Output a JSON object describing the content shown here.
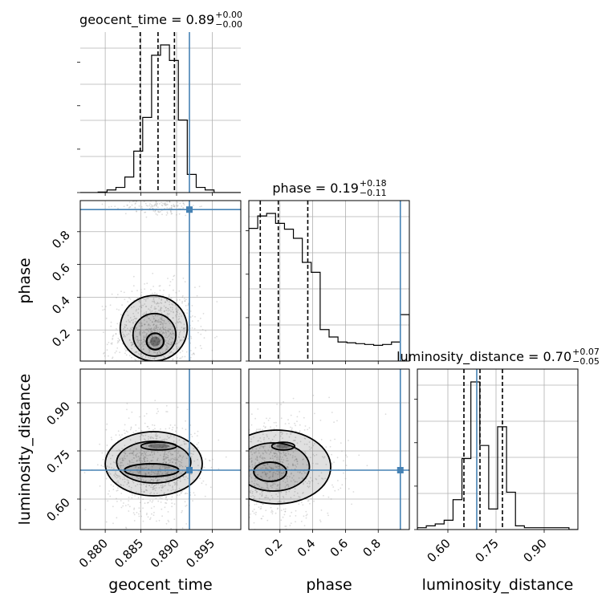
{
  "chart_data": {
    "type": "corner",
    "parameters": [
      {
        "name": "geocent_time",
        "axis_label": "geocent_time",
        "title_main": "geocent_time = 0.89",
        "title_up": "+0.00",
        "title_down": "−0.00",
        "range": [
          0.8765,
          0.899
        ],
        "ticks": [
          0.88,
          0.885,
          0.89,
          0.895
        ],
        "tick_labels": [
          "0.880",
          "0.885",
          "0.890",
          "0.895"
        ],
        "quantiles": [
          0.8849,
          0.8874,
          0.8897
        ],
        "truth": 0.8918,
        "hist": [
          0,
          0,
          0.2,
          1,
          2,
          6,
          16,
          29,
          53,
          57,
          51,
          28,
          7,
          2,
          1,
          0,
          0,
          0
        ]
      },
      {
        "name": "phase",
        "axis_label": "phase",
        "title_main": "phase = 0.19",
        "title_up": "+0.18",
        "title_down": "−0.11",
        "range": [
          0.01,
          0.99
        ],
        "ticks": [
          0.2,
          0.4,
          0.6,
          0.8
        ],
        "tick_labels": [
          "0.2",
          "0.4",
          "0.6",
          "0.8"
        ],
        "quantiles": [
          0.08,
          0.19,
          0.37
        ],
        "truth": 0.935,
        "hist": [
          160,
          175,
          178,
          166,
          159,
          148,
          119,
          107,
          38,
          29,
          23,
          22,
          21,
          20,
          19,
          20,
          23,
          56
        ]
      },
      {
        "name": "luminosity_distance",
        "axis_label": "luminosity_distance",
        "title_main": "luminosity_distance = 0.70",
        "title_up": "+0.07",
        "title_down": "−0.05",
        "range": [
          0.505,
          1.005
        ],
        "ticks": [
          0.6,
          0.75,
          0.9
        ],
        "tick_labels": [
          "0.60",
          "0.75",
          "0.90"
        ],
        "quantiles": [
          0.65,
          0.7,
          0.77
        ],
        "truth": 0.69,
        "hist": [
          1,
          2,
          3,
          5,
          16,
          38,
          79,
          45,
          11,
          55,
          20,
          2,
          1,
          1,
          1,
          1,
          1,
          0
        ]
      }
    ],
    "pairs": [
      {
        "x": "geocent_time",
        "y": "phase",
        "ylim": [
          0.01,
          0.99
        ],
        "blobs": [
          {
            "cx": 0.887,
            "cy": 0.18,
            "sx": 0.0018,
            "sy": 0.09,
            "weight": 1.0
          },
          {
            "cx": 0.8876,
            "cy": 0.96,
            "sx": 0.0016,
            "sy": 0.02,
            "weight": 0.2
          }
        ],
        "contours": [
          {
            "cx": 0.887,
            "cy": 0.13,
            "rx": 0.0012,
            "ry": 0.05,
            "lw": 2.2
          },
          {
            "cx": 0.8869,
            "cy": 0.17,
            "rx": 0.003,
            "ry": 0.13,
            "lw": 1.8
          },
          {
            "cx": 0.8868,
            "cy": 0.21,
            "rx": 0.0047,
            "ry": 0.2,
            "lw": 1.8
          }
        ]
      },
      {
        "x": "geocent_time",
        "y": "luminosity_distance",
        "ylim": [
          0.505,
          1.005
        ],
        "blobs": [
          {
            "cx": 0.8867,
            "cy": 0.7,
            "sx": 0.002,
            "sy": 0.045,
            "weight": 1.0
          }
        ],
        "contours": [
          {
            "cx": 0.8875,
            "cy": 0.765,
            "rx": 0.0025,
            "ry": 0.012,
            "lw": 1.8
          },
          {
            "cx": 0.8865,
            "cy": 0.69,
            "rx": 0.0038,
            "ry": 0.02,
            "lw": 2.0
          },
          {
            "cx": 0.8868,
            "cy": 0.715,
            "rx": 0.0052,
            "ry": 0.065,
            "lw": 1.8
          },
          {
            "cx": 0.8868,
            "cy": 0.71,
            "rx": 0.0068,
            "ry": 0.1,
            "lw": 1.8
          }
        ]
      },
      {
        "x": "phase",
        "y": "luminosity_distance",
        "ylim": [
          0.505,
          1.005
        ],
        "blobs": [
          {
            "cx": 0.15,
            "cy": 0.69,
            "sx": 0.12,
            "sy": 0.05,
            "weight": 1.0
          }
        ],
        "contours": [
          {
            "cx": 0.22,
            "cy": 0.765,
            "rx": 0.07,
            "ry": 0.012,
            "lw": 1.8
          },
          {
            "cx": 0.14,
            "cy": 0.685,
            "rx": 0.1,
            "ry": 0.03,
            "lw": 2.0
          },
          {
            "cx": 0.16,
            "cy": 0.7,
            "rx": 0.22,
            "ry": 0.075,
            "lw": 1.8
          },
          {
            "cx": 0.18,
            "cy": 0.7,
            "rx": 0.33,
            "ry": 0.115,
            "lw": 1.8
          }
        ]
      }
    ],
    "grid": true,
    "truth_color": "#4682b4",
    "point_color": "#9a9a9a"
  }
}
